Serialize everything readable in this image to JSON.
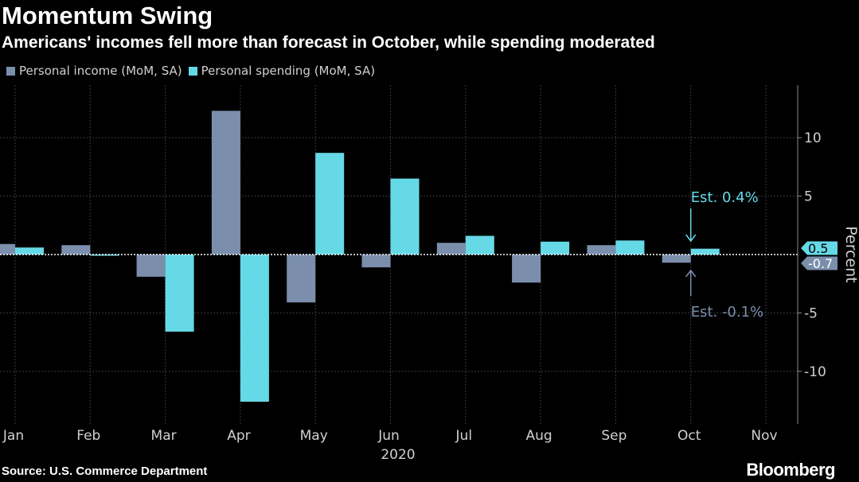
{
  "title": "Momentum Swing",
  "subtitle": "Americans' incomes fell more than forecast in October, while spending moderated",
  "source": "Source: U.S. Commerce Department",
  "brand": "Bloomberg",
  "colors": {
    "income": "#7b8fad",
    "spending": "#66d9e6",
    "grid": "#3a3a3a",
    "axis_text": "#d0d0d0"
  },
  "chart_data": {
    "type": "bar",
    "categories": [
      "Jan",
      "Feb",
      "Mar",
      "Apr",
      "May",
      "Jun",
      "Jul",
      "Aug",
      "Sep",
      "Oct",
      "Nov"
    ],
    "year_label": "2020",
    "series": [
      {
        "name": "Personal income (MoM, SA)",
        "values": [
          0.9,
          0.8,
          -1.9,
          12.3,
          -4.1,
          -1.1,
          1.0,
          -2.4,
          0.8,
          -0.7,
          null
        ]
      },
      {
        "name": "Personal spending (MoM, SA)",
        "values": [
          0.6,
          -0.1,
          -6.6,
          -12.6,
          8.7,
          6.5,
          1.6,
          1.1,
          1.2,
          0.5,
          null
        ]
      }
    ],
    "ylabel": "Percent",
    "ylim": [
      -14.5,
      14.5
    ],
    "yticks": [
      -10,
      -5,
      0,
      5,
      10
    ],
    "last_value_labels": [
      {
        "series": "Personal spending (MoM, SA)",
        "value": 0.5,
        "text": "0.5"
      },
      {
        "series": "Personal income (MoM, SA)",
        "value": -0.7,
        "text": "-0.7"
      }
    ],
    "annotations": [
      {
        "text": "Est. 0.4%",
        "category": "Oct",
        "series": "Personal spending (MoM, SA)"
      },
      {
        "text": "Est. -0.1%",
        "category": "Oct",
        "series": "Personal income (MoM, SA)"
      }
    ],
    "grid": true,
    "legend_position": "top-left"
  }
}
